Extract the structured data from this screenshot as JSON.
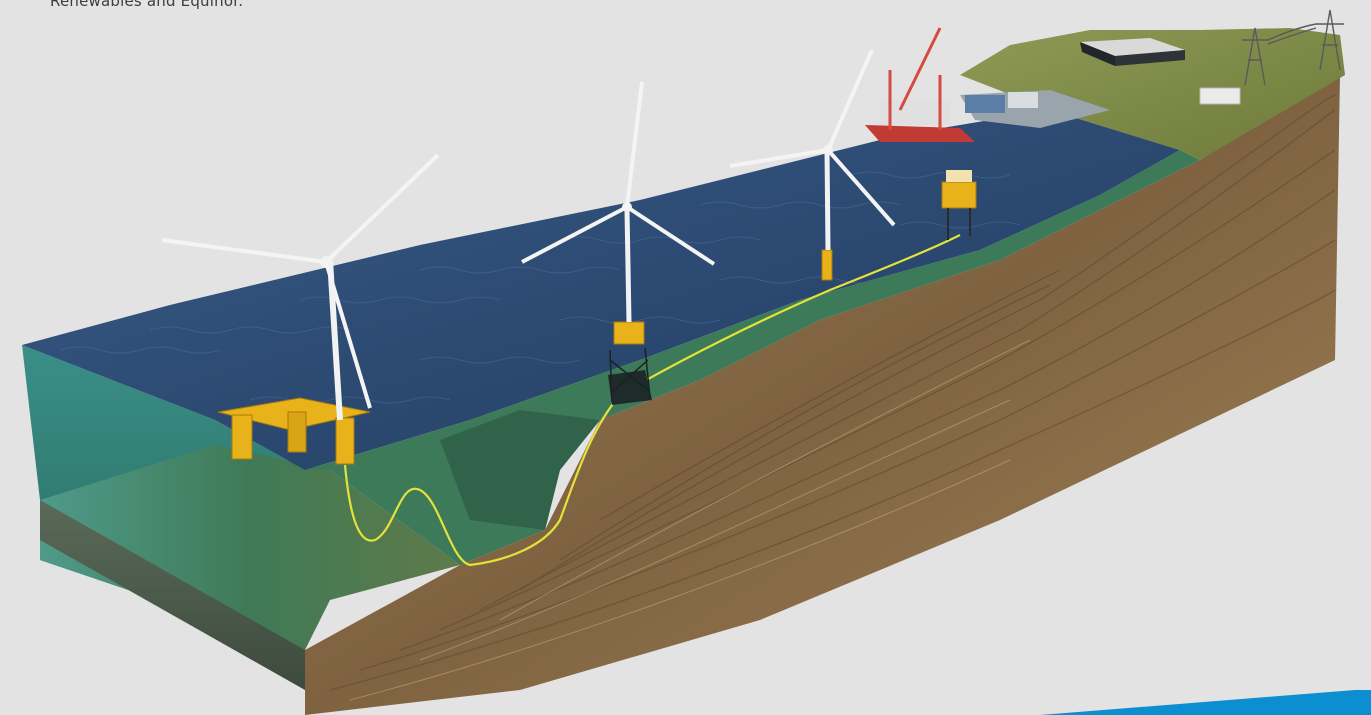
{
  "caption": "Renewables and Equinor.",
  "colors": {
    "background": "#e3e3e3",
    "sea_surface": "#2c4a72",
    "water_column": "#2f7f74",
    "seabed_green": "#3f7a56",
    "rock_strata": "#8a6a44",
    "grass": "#7f8a45",
    "cable": "#e4e23a",
    "turbine_white": "#f2f2f2",
    "floater_yellow": "#e8b21b",
    "accent_blue": "#0b8fd0"
  },
  "elements": {
    "turbines": [
      "floating-turbine",
      "jacket-turbine",
      "monopile-turbine"
    ],
    "structures": [
      "offshore-substation",
      "jack-up-vessel",
      "harbour",
      "onshore-building",
      "onshore-substation",
      "transmission-pylon"
    ]
  }
}
